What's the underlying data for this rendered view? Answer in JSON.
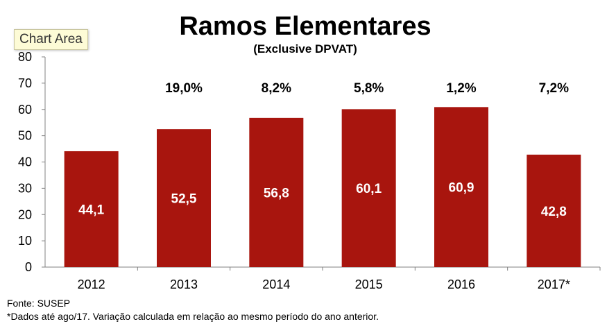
{
  "tooltip": "Chart Area",
  "footnotes": {
    "source": "Fonte: SUSEP",
    "note": "*Dados até ago/17. Variação calculada em relação ao mesmo período do ano anterior."
  },
  "colors": {
    "bar": "#a8150e",
    "axis": "#808080"
  },
  "chart_data": {
    "type": "bar",
    "title": "Ramos Elementares",
    "subtitle": "(Exclusive DPVAT)",
    "xlabel": "",
    "ylabel": "",
    "ylim": [
      0,
      80
    ],
    "yticks": [
      0,
      10,
      20,
      30,
      40,
      50,
      60,
      70,
      80
    ],
    "grid": false,
    "categories": [
      "2012",
      "2013",
      "2014",
      "2015",
      "2016",
      "2017*"
    ],
    "values": [
      44.1,
      52.5,
      56.8,
      60.1,
      60.9,
      42.8
    ],
    "value_labels": [
      "44,1",
      "52,5",
      "56,8",
      "60,1",
      "60,9",
      "42,8"
    ],
    "growth_labels": [
      "",
      "19,0%",
      "8,2%",
      "5,8%",
      "1,2%",
      "7,2%"
    ]
  }
}
